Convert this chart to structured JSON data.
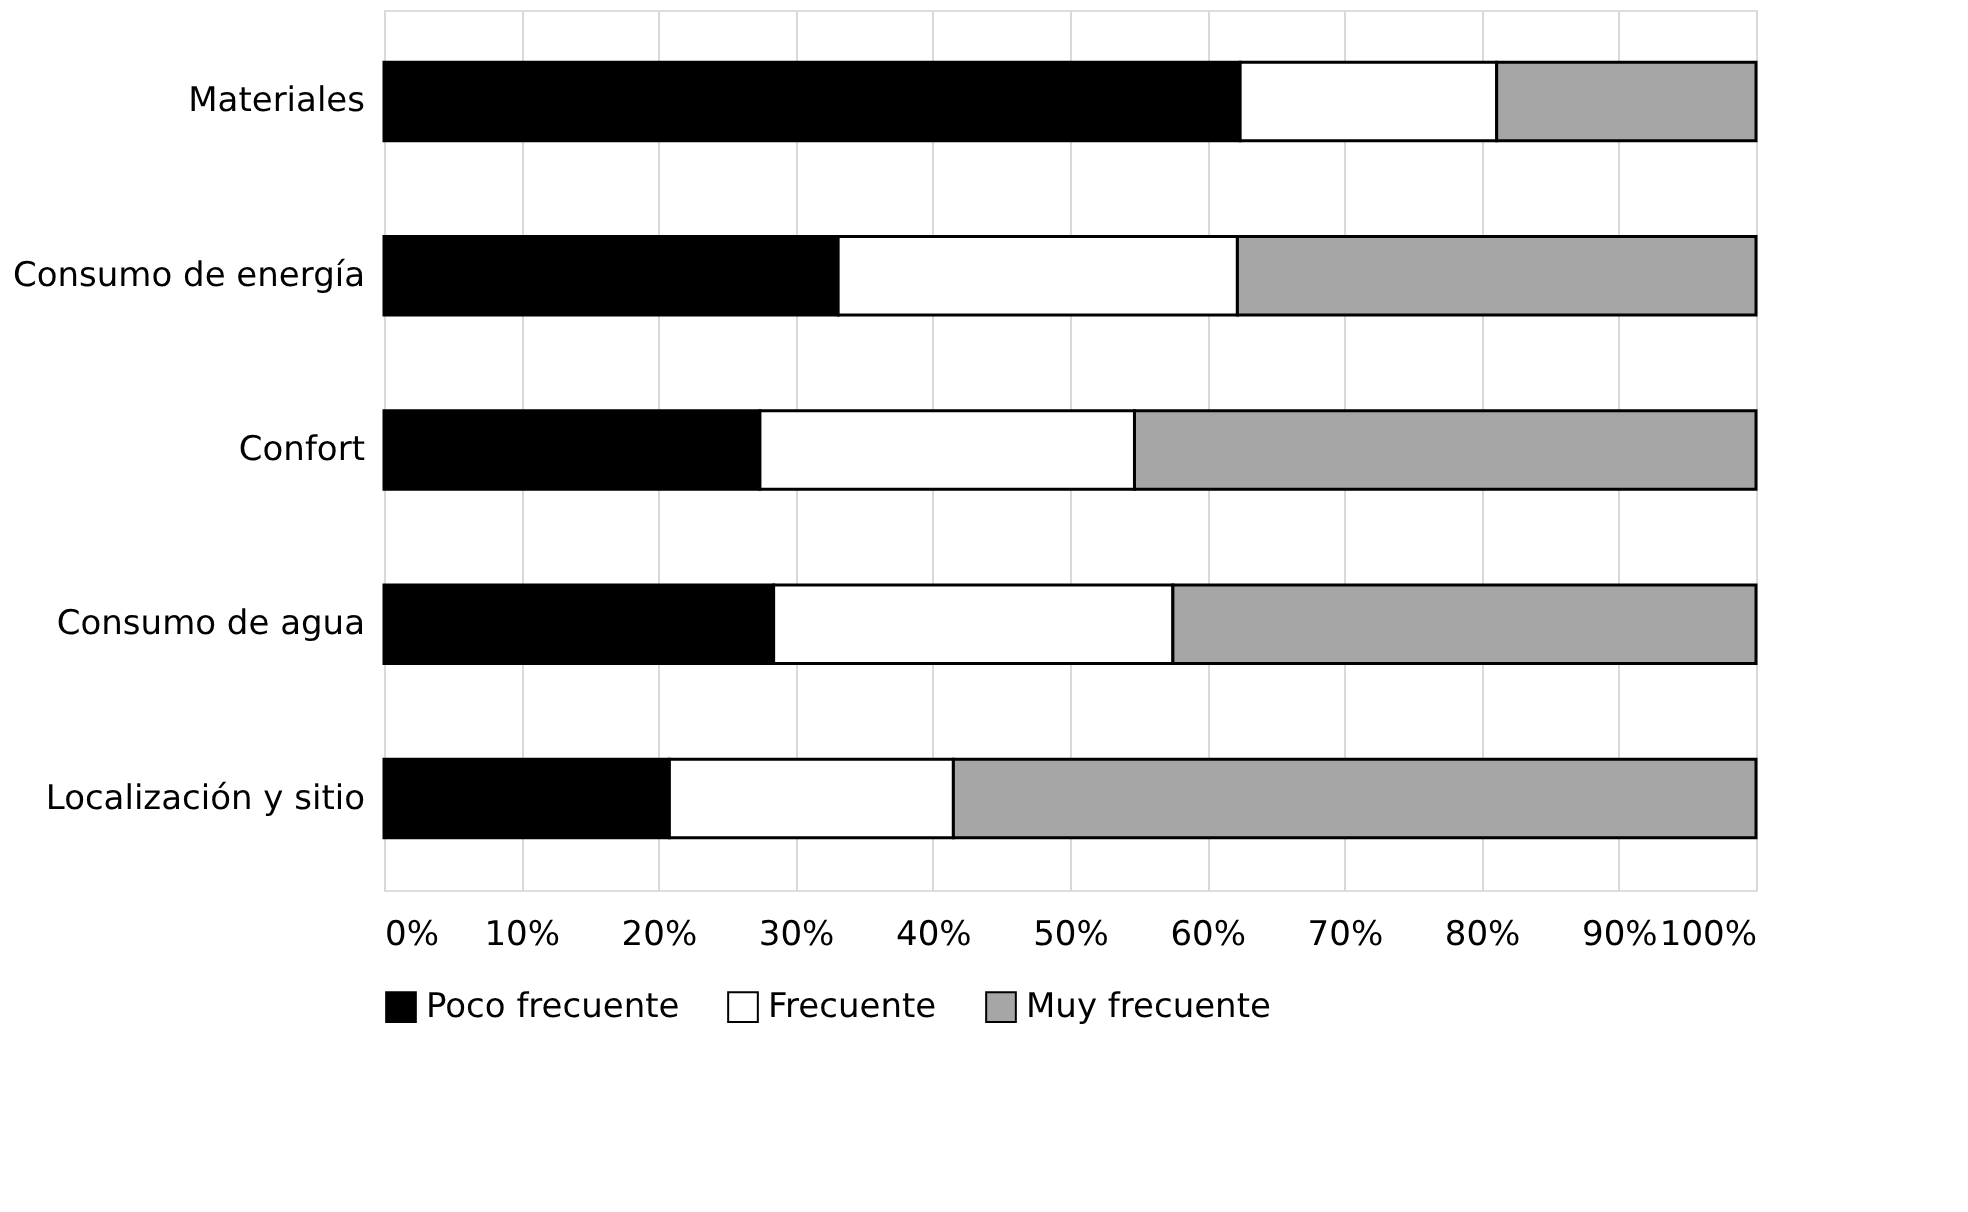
{
  "chart_data": {
    "type": "bar",
    "orientation": "horizontal",
    "stacked": true,
    "categories": [
      "Materiales",
      "Consumo de energía",
      "Confort",
      "Consumo de agua",
      "Localización y sitio"
    ],
    "series": [
      {
        "name": "Poco frecuente",
        "color": "#000000",
        "values": [
          62.4,
          33.1,
          27.4,
          28.4,
          20.8
        ]
      },
      {
        "name": "Frecuente",
        "color": "#ffffff",
        "values": [
          18.7,
          29.1,
          27.3,
          29.1,
          20.7
        ]
      },
      {
        "name": "Muy frecuente",
        "color": "#a6a6a6",
        "values": [
          18.9,
          37.8,
          45.3,
          42.5,
          58.5
        ]
      }
    ],
    "xlim": [
      0,
      100
    ],
    "xticks": [
      {
        "value": 0,
        "label": "0%"
      },
      {
        "value": 10,
        "label": "10%"
      },
      {
        "value": 20,
        "label": "20%"
      },
      {
        "value": 30,
        "label": "30%"
      },
      {
        "value": 40,
        "label": "40%"
      },
      {
        "value": 50,
        "label": "50%"
      },
      {
        "value": 60,
        "label": "60%"
      },
      {
        "value": 70,
        "label": "70%"
      },
      {
        "value": 80,
        "label": "80%"
      },
      {
        "value": 90,
        "label": "90%"
      },
      {
        "value": 100,
        "label": "100%"
      }
    ],
    "grid": "x",
    "legend": "bottom"
  }
}
